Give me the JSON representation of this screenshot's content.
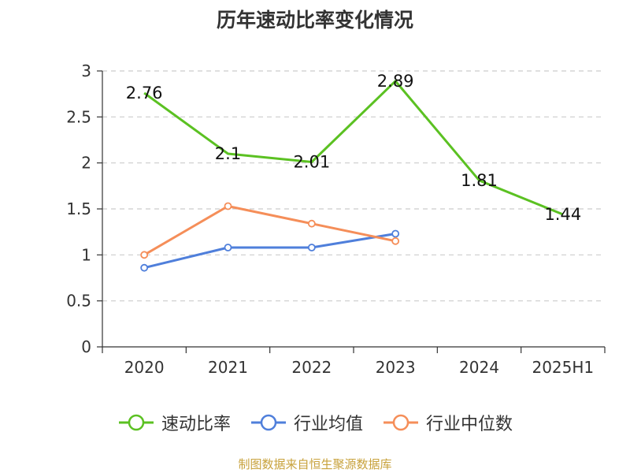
{
  "chart_data": {
    "type": "line",
    "title": "历年速动比率变化情况",
    "categories": [
      "2020",
      "2021",
      "2022",
      "2023",
      "2024",
      "2025H1"
    ],
    "ylim": [
      0,
      3
    ],
    "yticks": [
      "0",
      "0.5",
      "1",
      "1.5",
      "2",
      "2.5",
      "3"
    ],
    "ytick_values": [
      0,
      0.5,
      1,
      1.5,
      2,
      2.5,
      3
    ],
    "grid": true,
    "legend_position": "bottom",
    "series": [
      {
        "name": "速动比率",
        "color": "#5bc122",
        "values": [
          2.76,
          2.1,
          2.01,
          2.89,
          1.81,
          1.44
        ],
        "labels": [
          "2.76",
          "2.1",
          "2.01",
          "2.89",
          "1.81",
          "1.44"
        ],
        "show_labels": true,
        "markers": false
      },
      {
        "name": "行业均值",
        "color": "#4f7fdb",
        "values": [
          0.86,
          1.08,
          1.08,
          1.23,
          null,
          null
        ],
        "show_labels": false,
        "markers": true
      },
      {
        "name": "行业中位数",
        "color": "#f58e59",
        "values": [
          1.0,
          1.53,
          1.34,
          1.15,
          null,
          null
        ],
        "show_labels": false,
        "markers": true
      }
    ]
  },
  "source": "制图数据来自恒生聚源数据库"
}
